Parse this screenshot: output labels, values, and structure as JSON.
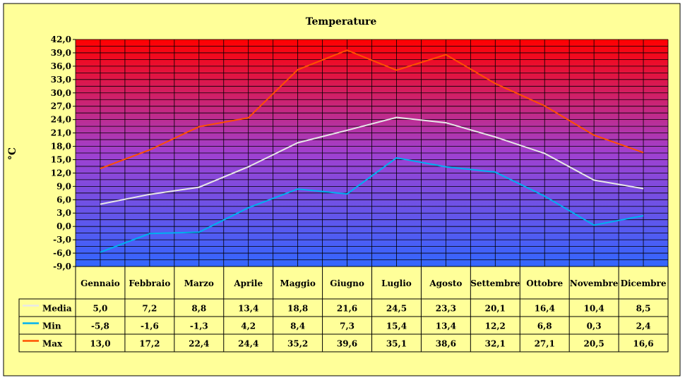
{
  "colors": {
    "background": "#ffff99",
    "plot_top": "#ff0000",
    "plot_bottom": "#3366ff",
    "grid": "#000000",
    "Media": "#e8e8e8",
    "Min": "#00b0f0",
    "Max": "#ff5000"
  },
  "chart_data": {
    "type": "line",
    "title": "Temperature",
    "ylabel": "°C",
    "xlabel": "",
    "ylim": [
      -9,
      42
    ],
    "ytick_step": 3,
    "y_tick_labels": [
      "42,0",
      "39,0",
      "36,0",
      "33,0",
      "30,0",
      "27,0",
      "24,0",
      "21,0",
      "18,0",
      "15,0",
      "12,0",
      "9,0",
      "6,0",
      "3,0",
      "0,0",
      "-3,0",
      "-6,0",
      "-9,0"
    ],
    "grid": true,
    "legend_placement": "data table",
    "categories": [
      "Gennaio",
      "Febbraio",
      "Marzo",
      "Aprile",
      "Maggio",
      "Giugno",
      "Luglio",
      "Agosto",
      "Settembre",
      "Ottobre",
      "Novembre",
      "Dicembre"
    ],
    "series": [
      {
        "name": "Media",
        "values": [
          5.0,
          7.2,
          8.8,
          13.4,
          18.8,
          21.6,
          24.5,
          23.3,
          20.1,
          16.4,
          10.4,
          8.5
        ],
        "labels": [
          "5,0",
          "7,2",
          "8,8",
          "13,4",
          "18,8",
          "21,6",
          "24,5",
          "23,3",
          "20,1",
          "16,4",
          "10,4",
          "8,5"
        ]
      },
      {
        "name": "Min",
        "values": [
          -5.8,
          -1.6,
          -1.3,
          4.2,
          8.4,
          7.3,
          15.4,
          13.4,
          12.2,
          6.8,
          0.3,
          2.4
        ],
        "labels": [
          "-5,8",
          "-1,6",
          "-1,3",
          "4,2",
          "8,4",
          "7,3",
          "15,4",
          "13,4",
          "12,2",
          "6,8",
          "0,3",
          "2,4"
        ]
      },
      {
        "name": "Max",
        "values": [
          13.0,
          17.2,
          22.4,
          24.4,
          35.2,
          39.6,
          35.1,
          38.6,
          32.1,
          27.1,
          20.5,
          16.6
        ],
        "labels": [
          "13,0",
          "17,2",
          "22,4",
          "24,4",
          "35,2",
          "39,6",
          "35,1",
          "38,6",
          "32,1",
          "27,1",
          "20,5",
          "16,6"
        ]
      }
    ]
  }
}
